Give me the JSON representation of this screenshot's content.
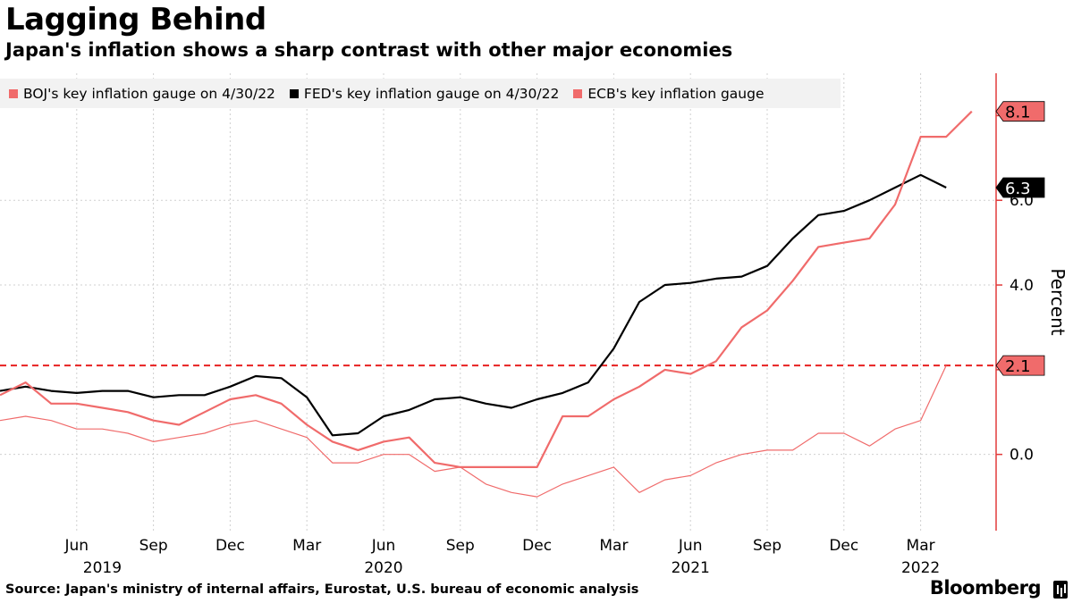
{
  "header": {
    "title": "Lagging Behind",
    "subtitle": "Japan's inflation shows a sharp contrast with other major economies"
  },
  "footer": {
    "source": "Source: Japan's ministry of internal affairs, Eurostat, U.S. bureau of economic analysis",
    "brand": "Bloomberg"
  },
  "colors": {
    "boj": "#f06b6b",
    "fed": "#000000",
    "ecb": "#f06b6b",
    "axis": "#e23b3b",
    "grid": "#d0d0d0",
    "reference": "#e82020"
  },
  "chart_data": {
    "type": "line",
    "title": "Lagging Behind",
    "subtitle": "Japan's inflation shows a sharp contrast with other major economies",
    "ylabel": "Percent",
    "ylim": [
      -1.8,
      9.0
    ],
    "yticks": [
      0.0,
      4.0,
      6.0
    ],
    "ytick_labels": [
      "0.0",
      "4.0",
      "6.0"
    ],
    "xlim": [
      "2019-03",
      "2022-06"
    ],
    "x_month_labels": [
      {
        "label": "Jun",
        "date": "2019-06"
      },
      {
        "label": "Sep",
        "date": "2019-09"
      },
      {
        "label": "Dec",
        "date": "2019-12"
      },
      {
        "label": "Mar",
        "date": "2020-03"
      },
      {
        "label": "Jun",
        "date": "2020-06"
      },
      {
        "label": "Sep",
        "date": "2020-09"
      },
      {
        "label": "Dec",
        "date": "2020-12"
      },
      {
        "label": "Mar",
        "date": "2021-03"
      },
      {
        "label": "Jun",
        "date": "2021-06"
      },
      {
        "label": "Sep",
        "date": "2021-09"
      },
      {
        "label": "Dec",
        "date": "2021-12"
      },
      {
        "label": "Mar",
        "date": "2022-03"
      }
    ],
    "x_year_labels": [
      {
        "label": "2019",
        "date": "2019-07"
      },
      {
        "label": "2020",
        "date": "2020-06"
      },
      {
        "label": "2021",
        "date": "2021-06"
      },
      {
        "label": "2022",
        "date": "2022-03"
      }
    ],
    "reference_line": {
      "value": 2.1,
      "label": "2.1",
      "style": "dashed"
    },
    "x": [
      "2019-03",
      "2019-04",
      "2019-05",
      "2019-06",
      "2019-07",
      "2019-08",
      "2019-09",
      "2019-10",
      "2019-11",
      "2019-12",
      "2020-01",
      "2020-02",
      "2020-03",
      "2020-04",
      "2020-05",
      "2020-06",
      "2020-07",
      "2020-08",
      "2020-09",
      "2020-10",
      "2020-11",
      "2020-12",
      "2021-01",
      "2021-02",
      "2021-03",
      "2021-04",
      "2021-05",
      "2021-06",
      "2021-07",
      "2021-08",
      "2021-09",
      "2021-10",
      "2021-11",
      "2021-12",
      "2022-01",
      "2022-02",
      "2022-03",
      "2022-04",
      "2022-05"
    ],
    "series": [
      {
        "name": "BOJ's key inflation gauge on 4/30/22",
        "end_label": "2.1",
        "values": [
          0.8,
          0.9,
          0.8,
          0.6,
          0.6,
          0.5,
          0.3,
          0.4,
          0.5,
          0.7,
          0.8,
          0.6,
          0.4,
          -0.2,
          -0.2,
          0.0,
          0.0,
          -0.4,
          -0.3,
          -0.7,
          -0.9,
          -1.0,
          -0.7,
          -0.5,
          -0.3,
          -0.9,
          -0.6,
          -0.5,
          -0.2,
          0.0,
          0.1,
          0.1,
          0.5,
          0.5,
          0.2,
          0.6,
          0.8,
          2.1,
          null
        ]
      },
      {
        "name": "FED's key inflation gauge on 4/30/22",
        "end_label": "6.3",
        "values": [
          1.5,
          1.6,
          1.5,
          1.45,
          1.5,
          1.5,
          1.35,
          1.4,
          1.4,
          1.6,
          1.85,
          1.8,
          1.35,
          0.45,
          0.5,
          0.9,
          1.05,
          1.3,
          1.35,
          1.2,
          1.1,
          1.3,
          1.45,
          1.7,
          2.5,
          3.6,
          4.0,
          4.05,
          4.15,
          4.2,
          4.45,
          5.1,
          5.65,
          5.75,
          6.0,
          6.3,
          6.6,
          6.3,
          null
        ]
      },
      {
        "name": "ECB's key inflation gauge",
        "end_label": "8.1",
        "values": [
          1.4,
          1.7,
          1.2,
          1.2,
          1.1,
          1.0,
          0.8,
          0.7,
          1.0,
          1.3,
          1.4,
          1.2,
          0.7,
          0.3,
          0.1,
          0.3,
          0.4,
          -0.2,
          -0.3,
          -0.3,
          -0.3,
          -0.3,
          0.9,
          0.9,
          1.3,
          1.6,
          2.0,
          1.9,
          2.2,
          3.0,
          3.4,
          4.1,
          4.9,
          5.0,
          5.1,
          5.9,
          7.5,
          7.5,
          8.1
        ]
      }
    ]
  }
}
